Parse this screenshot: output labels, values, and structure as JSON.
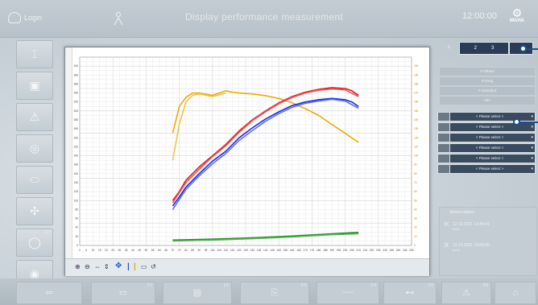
{
  "header": {
    "login_label": "Login",
    "title": "Display performance measurement",
    "time": "12:00:00",
    "brand": "MAHA"
  },
  "sidebar": {
    "numbers": [
      "",
      "",
      "",
      "",
      "",
      "",
      "F7",
      ""
    ]
  },
  "bottom": {
    "numbers": [
      "F1",
      "F2",
      "F3",
      "F4",
      "F5",
      "F6",
      "",
      ""
    ]
  },
  "right": {
    "tabs": [
      "1",
      "2",
      "3",
      "4"
    ],
    "buttons": [
      "P-Wheel",
      "P-Drag",
      "P-Standard",
      "Info"
    ],
    "selects": [
      "< Please select >",
      "< Please select >",
      "< Please select >",
      "< Please select >",
      "< Please select >",
      "< Please select >"
    ],
    "list_title": "Stored values",
    "entries": [
      {
        "date": "12.10.2021 13:40:41",
        "sub": "km/h"
      },
      {
        "date": "12.10.2021 15:00:00",
        "sub": "km/h"
      }
    ]
  },
  "chart_data": {
    "type": "line",
    "x_ticks": [
      "0",
      "5",
      "10",
      "15",
      "20",
      "25",
      "30",
      "35",
      "40",
      "45",
      "50",
      "55",
      "60",
      "65",
      "70",
      "75",
      "80",
      "85",
      "90",
      "95",
      "100",
      "105",
      "110",
      "115",
      "120",
      "125",
      "130",
      "135",
      "140",
      "145",
      "150",
      "155",
      "160",
      "165",
      "170",
      "175",
      "180",
      "185",
      "190",
      "195",
      "200",
      "205",
      "210",
      "215",
      "220",
      "225",
      "230",
      "235",
      "240",
      "245",
      "250"
    ],
    "left_ticks": [
      "0",
      "20",
      "40",
      "60",
      "80",
      "100",
      "120",
      "140",
      "160",
      "180",
      "200",
      "220",
      "240",
      "260",
      "280",
      "300",
      "320",
      "340",
      "360",
      "380",
      "400"
    ],
    "right_ticks": [
      "0",
      "10",
      "20",
      "30",
      "40",
      "50",
      "60",
      "70",
      "80",
      "90",
      "100",
      "110",
      "120",
      "130",
      "140",
      "150",
      "160",
      "170",
      "180",
      "190",
      "200"
    ],
    "xlim": [
      0,
      250
    ],
    "ylim": [
      0,
      420
    ],
    "series": [
      {
        "color": "#f2a900",
        "x": [
          70,
          75,
          80,
          85,
          90,
          100,
          105,
          110,
          115,
          120,
          130,
          140,
          150,
          160,
          170,
          180,
          190,
          200,
          210
        ],
        "y": [
          250,
          310,
          330,
          340,
          340,
          335,
          340,
          345,
          342,
          340,
          338,
          334,
          328,
          318,
          305,
          290,
          270,
          250,
          230
        ]
      },
      {
        "color": "#f2c34a",
        "x": [
          70,
          75,
          80,
          85,
          90,
          100,
          105,
          110
        ],
        "y": [
          190,
          270,
          320,
          335,
          338,
          332,
          336,
          340
        ]
      },
      {
        "color": "#e0191d",
        "x": [
          70,
          75,
          80,
          90,
          100,
          110,
          120,
          130,
          140,
          150,
          160,
          170,
          180,
          190,
          200,
          205,
          210
        ],
        "y": [
          100,
          120,
          145,
          175,
          200,
          225,
          255,
          280,
          300,
          318,
          332,
          342,
          348,
          352,
          350,
          345,
          335
        ]
      },
      {
        "color": "#e85b5f",
        "x": [
          70,
          80,
          90,
          100,
          110,
          120,
          130,
          140,
          150,
          160,
          170,
          180,
          190,
          200,
          210
        ],
        "y": [
          95,
          140,
          170,
          198,
          222,
          252,
          278,
          298,
          316,
          330,
          340,
          346,
          349,
          347,
          332
        ]
      },
      {
        "color": "#1a2ce0",
        "x": [
          70,
          75,
          80,
          90,
          100,
          110,
          120,
          130,
          140,
          150,
          160,
          170,
          180,
          190,
          200,
          205,
          210
        ],
        "y": [
          88,
          108,
          130,
          160,
          188,
          210,
          240,
          262,
          282,
          298,
          312,
          320,
          325,
          328,
          325,
          320,
          310
        ]
      },
      {
        "color": "#6070f0",
        "x": [
          70,
          80,
          90,
          100,
          110,
          120,
          130,
          140,
          150,
          160,
          170,
          180,
          190,
          200,
          210
        ],
        "y": [
          80,
          125,
          155,
          182,
          205,
          234,
          256,
          277,
          294,
          308,
          317,
          322,
          326,
          322,
          306
        ]
      },
      {
        "color": "#1f8a1f",
        "x": [
          70,
          100,
          130,
          160,
          190,
          210
        ],
        "y": [
          12,
          14,
          17,
          21,
          26,
          29
        ]
      },
      {
        "color": "#58b058",
        "x": [
          70,
          100,
          130,
          160,
          190,
          210
        ],
        "y": [
          10,
          12,
          15,
          19,
          24,
          26
        ]
      }
    ]
  }
}
